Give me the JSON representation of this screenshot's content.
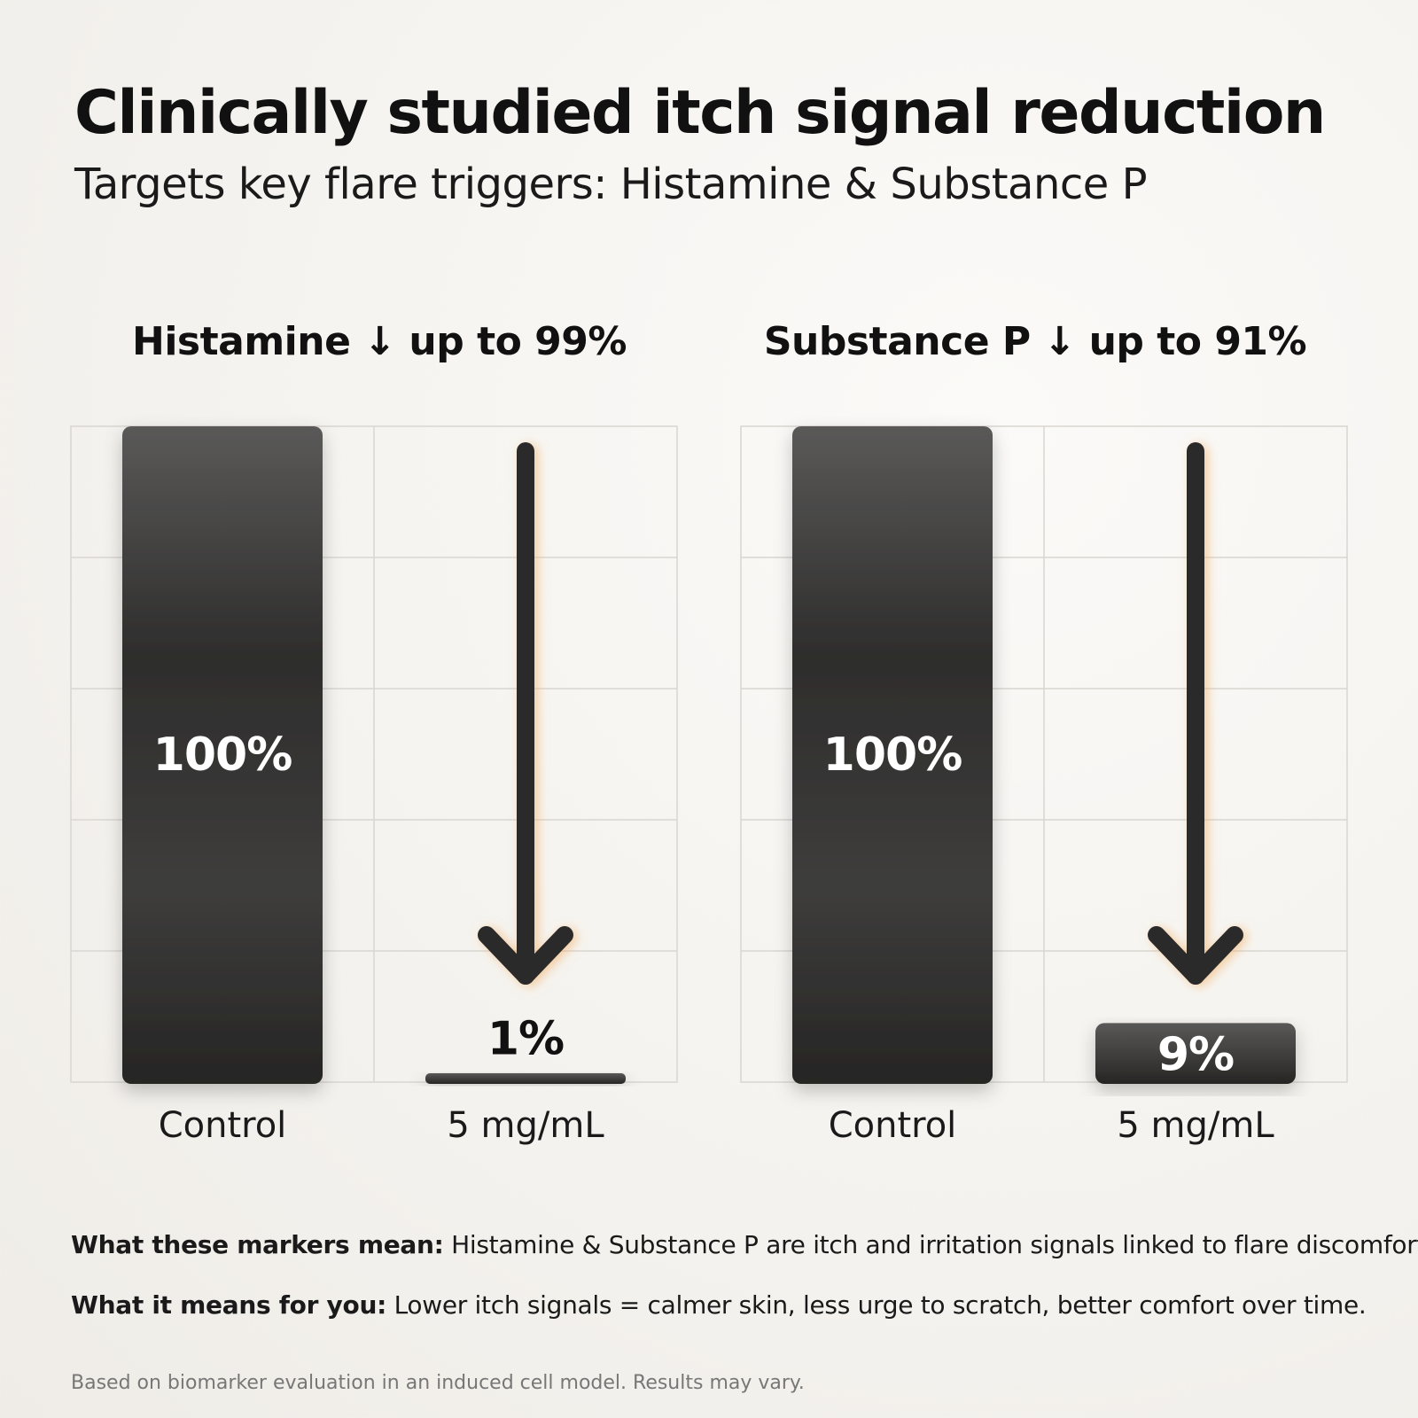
{
  "title": "Clinically studied itch signal reduction",
  "subtitle": "Targets key flare triggers: Histamine & Substance P",
  "colors": {
    "bar": "#2c2b2a",
    "bar_light": "#4d4c4b",
    "text_on_bar": "#ffffff",
    "grid": "#d9d6d1",
    "glow": "#f0b46a"
  },
  "chart_data": [
    {
      "type": "bar",
      "title": "Histamine ↓ up to 99%",
      "categories": [
        "Control",
        "5 mg/mL"
      ],
      "values": [
        100,
        1
      ],
      "value_labels": [
        "100%",
        "1%"
      ],
      "ylim": [
        0,
        100
      ],
      "grid": true,
      "annotation": "down-arrow"
    },
    {
      "type": "bar",
      "title": "Substance P ↓ up to 91%",
      "categories": [
        "Control",
        "5 mg/mL"
      ],
      "values": [
        100,
        9
      ],
      "value_labels": [
        "100%",
        "9%"
      ],
      "ylim": [
        0,
        100
      ],
      "grid": true,
      "annotation": "down-arrow"
    }
  ],
  "notes": [
    {
      "label": "What these markers mean:",
      "text": " Histamine & Substance P are itch and irritation signals linked to flare discomfort."
    },
    {
      "label": "What it means for you:",
      "text": " Lower itch signals = calmer skin, less urge to scratch, better comfort over time."
    }
  ],
  "footnote": "Based on biomarker evaluation in an induced cell model. Results may vary."
}
